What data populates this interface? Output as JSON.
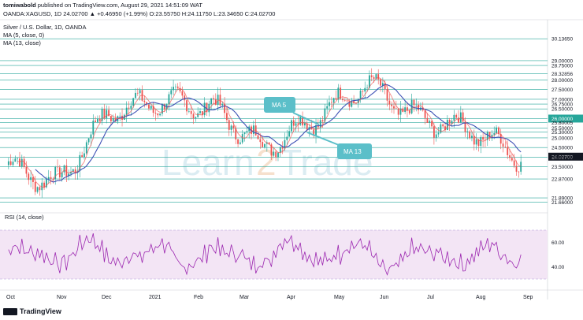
{
  "header": {
    "published_line_user": "tomiwabold",
    "published_line_rest": "published on TradingView.com, August 29, 2021 14:51:09 WAT",
    "ohlc_line": "OANDA:XAGUSD, 1D  24.02700  ▲ +0.46950 (+1.99%) O:23.55750 H:24.11750 L:23.34650 C:24.02700",
    "symbol_title": "Silver / U.S. Dollar, 1D, OANDA",
    "indicator_1": "MA (5, close, 0)",
    "indicator_2": "MA (13, close)"
  },
  "annotations": {
    "ma5_label": "MA 5",
    "ma13_label": "MA 13"
  },
  "watermark": {
    "left": "Learn",
    "mid": "2",
    "right": "Trade"
  },
  "rsi": {
    "label": "RSI (14, close)",
    "ticks": [
      "60.00",
      "40.00"
    ]
  },
  "footer": {
    "brand": "TradingView"
  },
  "colors": {
    "up": "#26a69a",
    "down": "#ef5350",
    "ma5": "#ef5350",
    "ma13": "#3f51b5",
    "levels": "#26a69a",
    "rsi": "#9c27b0",
    "rsi_band": "#f3e5f5",
    "badge": "#5bbfc9"
  },
  "chart_data": {
    "type": "candlestick",
    "title": "Silver / U.S. Dollar, 1D, OANDA",
    "x_ticks": [
      "Oct",
      "Nov",
      "Dec",
      "2021",
      "Feb",
      "Mar",
      "Apr",
      "May",
      "Jun",
      "Jul",
      "Aug",
      "Sep"
    ],
    "y_ticks": [
      "30.13650",
      "29.00000",
      "28.75000",
      "28.32856",
      "28.00000",
      "27.50000",
      "27.00000",
      "26.75000",
      "26.50000",
      "26.00000",
      "25.80005",
      "25.50000",
      "25.30000",
      "25.00000",
      "24.50000",
      "24.02700",
      "24.00000",
      "23.50000",
      "22.87000",
      "21.89000",
      "21.66000"
    ],
    "horizontal_levels": [
      30.1365,
      29.0,
      28.75,
      28.32856,
      28.0,
      27.5,
      27.0,
      26.75,
      26.5,
      26.0,
      25.80005,
      25.5,
      25.3,
      25.0,
      24.5,
      24.0,
      23.5,
      22.87,
      21.89,
      21.66
    ],
    "last_price": "24.02700",
    "highlight_levels": [
      "26.00000",
      "24.02700"
    ],
    "ylim": [
      21.2,
      31.0
    ],
    "monthly_closes": [
      {
        "month": "Oct",
        "close": 23.6
      },
      {
        "month": "Nov",
        "close": 22.6
      },
      {
        "month": "Dec",
        "close": 26.4
      },
      {
        "month": "Jan",
        "close": 26.9
      },
      {
        "month": "Feb",
        "close": 26.6
      },
      {
        "month": "Mar",
        "close": 24.5
      },
      {
        "month": "Apr",
        "close": 26.0
      },
      {
        "month": "May",
        "close": 27.8
      },
      {
        "month": "Jun",
        "close": 26.0
      },
      {
        "month": "Jul",
        "close": 25.5
      },
      {
        "month": "Aug",
        "close": 24.0
      }
    ],
    "series": [
      {
        "name": "MA (5, close, 0)"
      },
      {
        "name": "MA (13, close)"
      }
    ],
    "rsi_levels": [
      60,
      40
    ]
  }
}
